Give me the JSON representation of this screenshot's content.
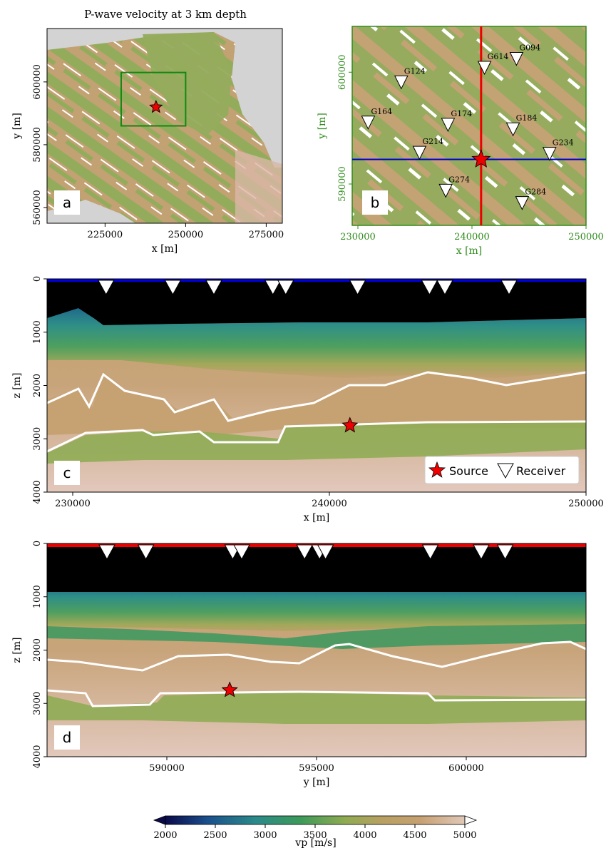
{
  "figure": {
    "colormap": [
      "#0a0a4a",
      "#1b4f8c",
      "#2b8a8a",
      "#3d9a5a",
      "#8fab52",
      "#b7a062",
      "#c6a072",
      "#e0c8b8"
    ],
    "colorbar_label": "vp [m/s]",
    "colorbar_ticks": [
      "2000",
      "2500",
      "3000",
      "3500",
      "4000",
      "4500",
      "5000"
    ],
    "legend": {
      "source": "Source",
      "receiver": "Receiver"
    }
  },
  "chart_data": [
    {
      "panel": "a",
      "type": "heatmap",
      "title": "P-wave velocity at 3 km depth",
      "xlabel": "x [m]",
      "ylabel": "y [m]",
      "xlim": [
        207000,
        280000
      ],
      "ylim": [
        555000,
        617000
      ],
      "xticks": [
        "225000",
        "250000",
        "275000"
      ],
      "yticks": [
        "560000",
        "580000",
        "600000"
      ],
      "zoom_box": {
        "x": [
          230000,
          250000
        ],
        "y": [
          586000,
          603000
        ]
      },
      "source": {
        "x": 240800,
        "y": 592000
      }
    },
    {
      "panel": "b",
      "type": "scatter",
      "xlabel": "x [m]",
      "ylabel": "y [m]",
      "xlim": [
        229500,
        250000
      ],
      "ylim": [
        586300,
        604100
      ],
      "xticks": [
        "230000",
        "240000",
        "250000"
      ],
      "yticks": [
        "590000",
        "600000"
      ],
      "source": {
        "x": 240800,
        "y": 592200
      },
      "profile_lines": {
        "x_const": 240800,
        "y_const": 592200
      },
      "receivers": [
        {
          "name": "G094",
          "x": 243900,
          "y": 601200
        },
        {
          "name": "G614",
          "x": 241100,
          "y": 600400
        },
        {
          "name": "G124",
          "x": 233800,
          "y": 599100
        },
        {
          "name": "G164",
          "x": 230900,
          "y": 595500
        },
        {
          "name": "G174",
          "x": 237900,
          "y": 595300
        },
        {
          "name": "G184",
          "x": 243600,
          "y": 594900
        },
        {
          "name": "G214",
          "x": 235400,
          "y": 592800
        },
        {
          "name": "G234",
          "x": 246800,
          "y": 592700
        },
        {
          "name": "G274",
          "x": 237700,
          "y": 589400
        },
        {
          "name": "G284",
          "x": 244400,
          "y": 588300
        }
      ]
    },
    {
      "panel": "c",
      "type": "heatmap",
      "xlabel": "x [m]",
      "ylabel": "z [m]",
      "xlim": [
        229000,
        250000
      ],
      "ylim": [
        4000,
        0
      ],
      "xticks": [
        "230000",
        "240000",
        "250000"
      ],
      "yticks": [
        "0",
        "1000",
        "2000",
        "3000",
        "4000"
      ],
      "source": {
        "x": 240800,
        "z": 2750
      },
      "receivers_x": [
        231300,
        233900,
        235500,
        237800,
        238300,
        241100,
        243900,
        244500,
        247000
      ],
      "water_line_color": "#0000dd"
    },
    {
      "panel": "d",
      "type": "heatmap",
      "xlabel": "y [m]",
      "ylabel": "z [m]",
      "xlim": [
        586000,
        604000
      ],
      "ylim": [
        4000,
        0
      ],
      "xticks": [
        "590000",
        "595000",
        "600000"
      ],
      "yticks": [
        "0",
        "1000",
        "2000",
        "3000",
        "4000"
      ],
      "source": {
        "y": 592100,
        "z": 2750
      },
      "receivers_y": [
        588000,
        589300,
        592200,
        592500,
        594600,
        595100,
        595300,
        598800,
        600500,
        601300
      ],
      "water_line_color": "#ee0000"
    }
  ]
}
